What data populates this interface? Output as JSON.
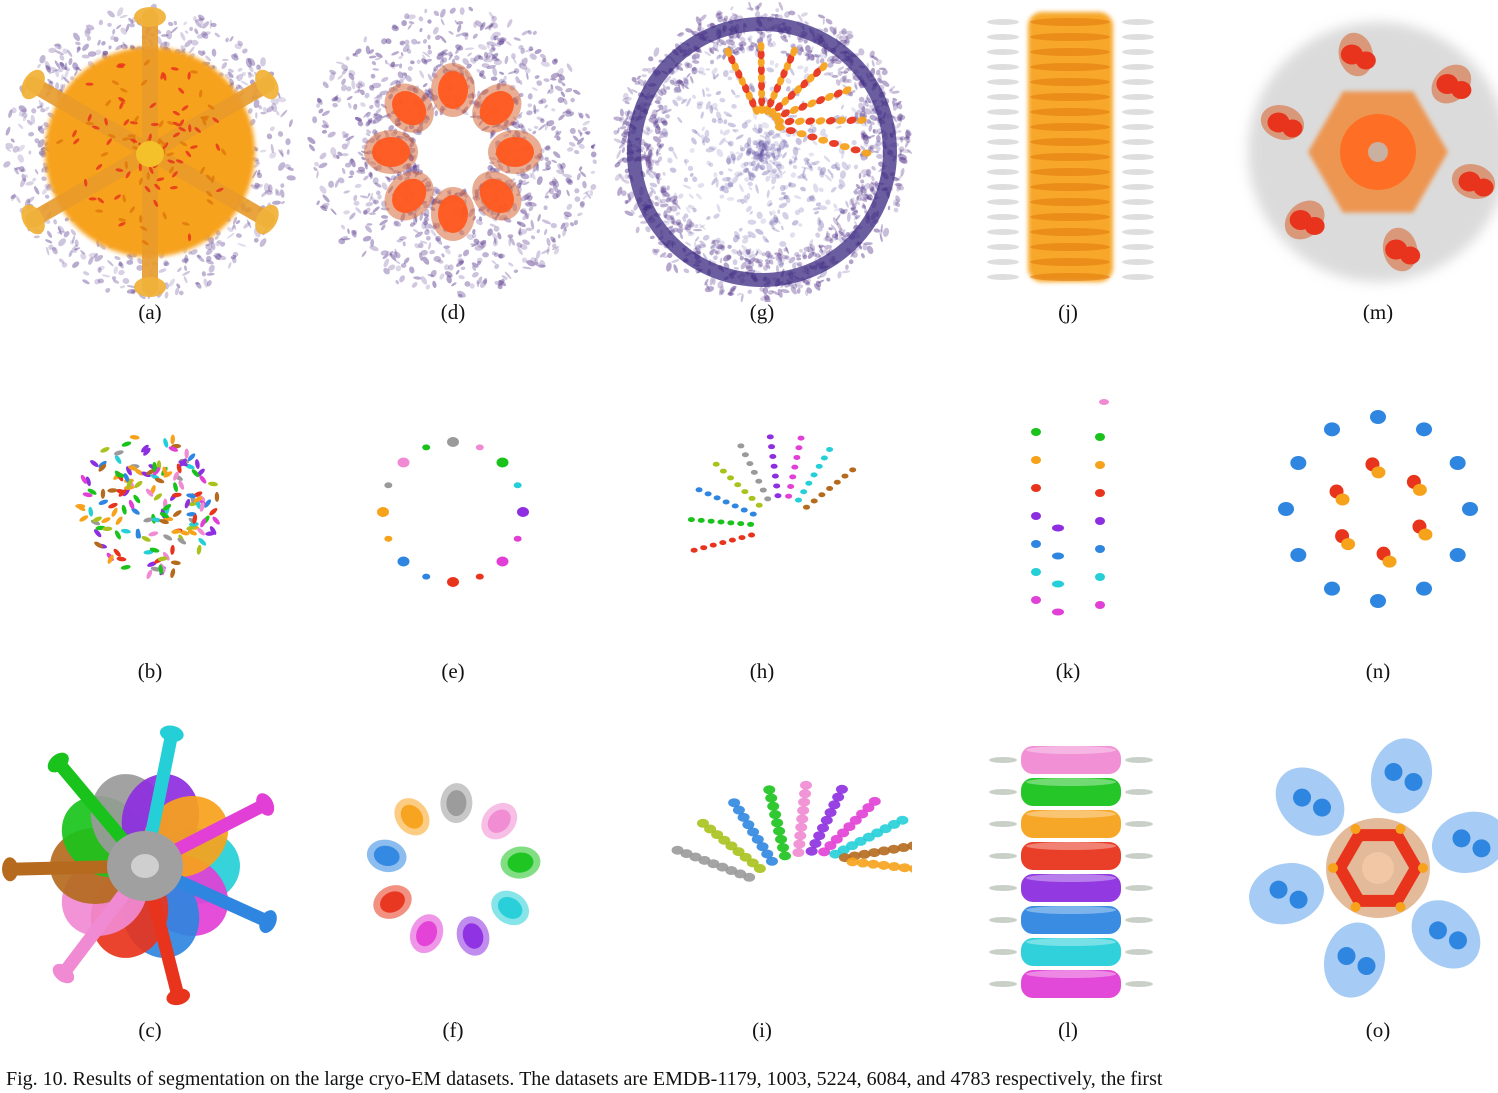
{
  "figure": {
    "panels": [
      {
        "id": "a",
        "label": "(a)",
        "kind": "virus-fuzzy"
      },
      {
        "id": "d",
        "label": "(d)",
        "kind": "ring-fuzzy"
      },
      {
        "id": "g",
        "label": "(g)",
        "kind": "sphere-fuzzy"
      },
      {
        "id": "j",
        "label": "(j)",
        "kind": "tube-orange"
      },
      {
        "id": "m",
        "label": "(m)",
        "kind": "hex-orange"
      },
      {
        "id": "b",
        "label": "(b)",
        "kind": "scatter-sphere"
      },
      {
        "id": "e",
        "label": "(e)",
        "kind": "scatter-ring"
      },
      {
        "id": "h",
        "label": "(h)",
        "kind": "scatter-arc"
      },
      {
        "id": "k",
        "label": "(k)",
        "kind": "scatter-column"
      },
      {
        "id": "n",
        "label": "(n)",
        "kind": "scatter-hex"
      },
      {
        "id": "c",
        "label": "(c)",
        "kind": "virus-colored"
      },
      {
        "id": "f",
        "label": "(f)",
        "kind": "ring-colored"
      },
      {
        "id": "i",
        "label": "(i)",
        "kind": "arc-colored"
      },
      {
        "id": "l",
        "label": "(l)",
        "kind": "tube-colored"
      },
      {
        "id": "o",
        "label": "(o)",
        "kind": "hex-colored"
      }
    ],
    "palette": {
      "orange": "#f7a21b",
      "orange_dark": "#e0780c",
      "red": "#e8341c",
      "purple": "#5b3c8f",
      "gray": "#9a9a9a",
      "pink": "#f08ad2",
      "green": "#19c31c",
      "blue": "#2f86e0",
      "cyan": "#25cfd8",
      "magenta": "#e23fd6",
      "violet": "#8d2ee0",
      "brown": "#b56a1e",
      "yellowgreen": "#a9c21d"
    }
  },
  "caption": "Fig. 10. Results of segmentation on the large cryo-EM datasets. The datasets are EMDB-1179, 1003, 5224, 6084, and 4783 respectively, the first"
}
